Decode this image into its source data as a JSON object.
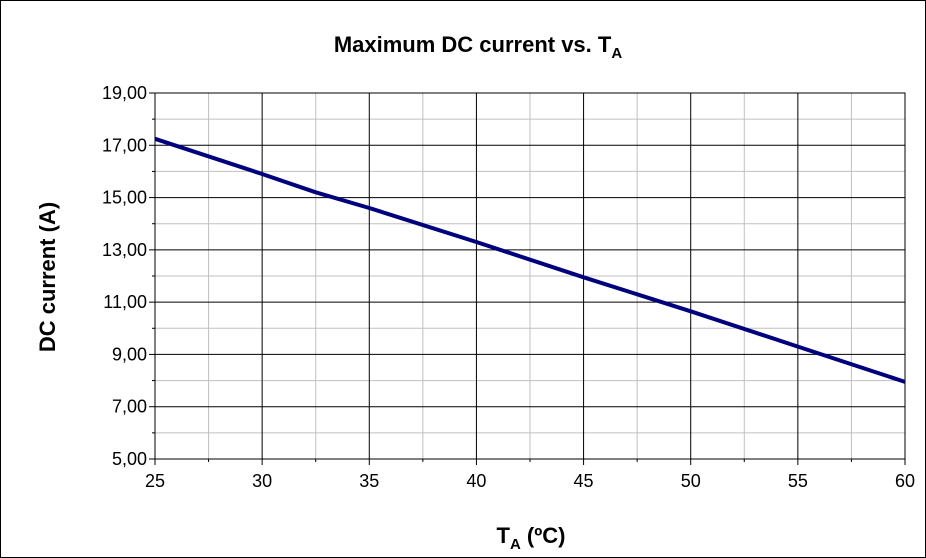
{
  "chart_data": {
    "type": "line",
    "title": "Maximum DC current vs. T",
    "title_subscript": "A",
    "xlabel": "T",
    "xlabel_subscript": "A",
    "xlabel_unit": " (ºC)",
    "ylabel": "DC current (A)",
    "xlim": [
      25,
      60
    ],
    "ylim": [
      5,
      19
    ],
    "x_ticks": [
      25,
      30,
      35,
      40,
      45,
      50,
      55,
      60
    ],
    "x_tick_labels": [
      "25",
      "30",
      "35",
      "40",
      "45",
      "50",
      "55",
      "60"
    ],
    "y_ticks": [
      5,
      7,
      9,
      11,
      13,
      15,
      17,
      19
    ],
    "y_tick_labels": [
      "5,00",
      "7,00",
      "9,00",
      "11,00",
      "13,00",
      "15,00",
      "17,00",
      "19,00"
    ],
    "grid": true,
    "series": [
      {
        "color": "#00007f",
        "x": [
          25,
          30,
          32.5,
          35,
          40,
          45,
          50,
          55,
          60
        ],
        "y": [
          17.25,
          15.9,
          15.2,
          14.6,
          13.3,
          11.95,
          10.65,
          9.3,
          7.95
        ]
      }
    ]
  }
}
